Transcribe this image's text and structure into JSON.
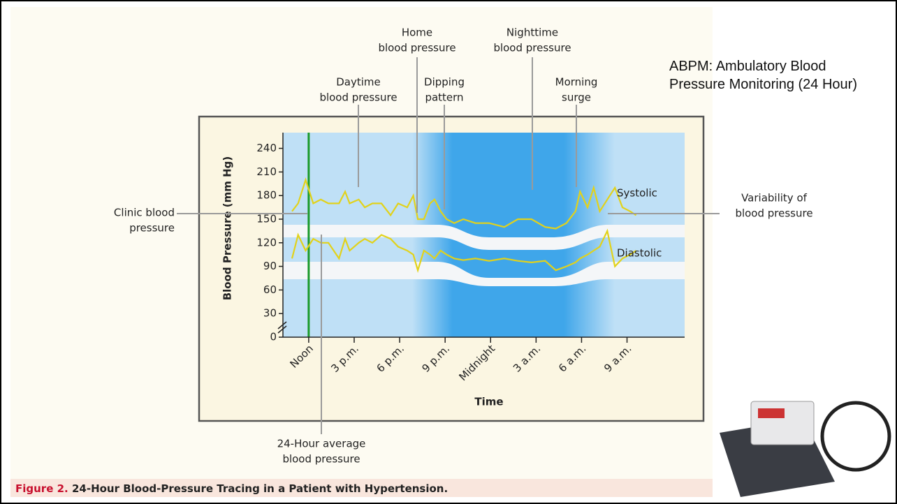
{
  "chart_data": {
    "type": "line",
    "x_label": "Time",
    "y_label": "Blood Pressure (mm Hg)",
    "x": [
      -1.1,
      -0.7,
      -0.2,
      0.3,
      0.8,
      1.3,
      2.0,
      2.4,
      2.7,
      3.3,
      3.7,
      4.2,
      4.8,
      5.4,
      5.9,
      6.5,
      6.9,
      7.2,
      7.6,
      8.0,
      8.3,
      8.7,
      9.1,
      9.6,
      10.2,
      11.0,
      11.9,
      12.9,
      13.8,
      14.7,
      15.6,
      16.3,
      17.0,
      17.6,
      17.9,
      18.4,
      18.8,
      19.2,
      19.7,
      20.2,
      20.7,
      21.2,
      21.6
    ],
    "series": [
      {
        "name": "Systolic",
        "color": "#e2d21a",
        "values": [
          160,
          170,
          200,
          170,
          175,
          170,
          170,
          185,
          170,
          175,
          165,
          170,
          170,
          155,
          170,
          165,
          180,
          150,
          150,
          170,
          175,
          160,
          150,
          145,
          150,
          145,
          145,
          140,
          150,
          150,
          140,
          138,
          145,
          160,
          185,
          165,
          190,
          160,
          175,
          190,
          165,
          160,
          155
        ]
      },
      {
        "name": "Diastolic",
        "color": "#e2d21a",
        "values": [
          100,
          130,
          110,
          125,
          120,
          120,
          100,
          125,
          110,
          120,
          125,
          120,
          130,
          125,
          115,
          110,
          105,
          85,
          110,
          105,
          100,
          110,
          105,
          100,
          98,
          100,
          97,
          100,
          97,
          95,
          97,
          85,
          90,
          95,
          100,
          105,
          110,
          115,
          135,
          90,
          100,
          105,
          110
        ]
      }
    ],
    "xlim": [
      -1.7,
      24.8
    ],
    "ylim": [
      0,
      260
    ],
    "xticks": [
      {
        "value": 0,
        "label": "Noon"
      },
      {
        "value": 3,
        "label": "3 p.m."
      },
      {
        "value": 6,
        "label": "6 p.m."
      },
      {
        "value": 9,
        "label": "9 p.m."
      },
      {
        "value": 12,
        "label": "Midnight"
      },
      {
        "value": 15,
        "label": "3 a.m."
      },
      {
        "value": 18,
        "label": "6 a.m."
      },
      {
        "value": 21,
        "label": "9 a.m."
      }
    ],
    "yticks": [
      0,
      30,
      60,
      90,
      120,
      150,
      180,
      210,
      240
    ],
    "annotations": [
      {
        "lines": [
          "Home",
          "blood pressure"
        ]
      },
      {
        "lines": [
          "Nighttime",
          "blood pressure"
        ]
      },
      {
        "lines": [
          "Daytime",
          "blood pressure"
        ]
      },
      {
        "lines": [
          "Dipping",
          "pattern"
        ]
      },
      {
        "lines": [
          "Morning",
          "surge"
        ]
      },
      {
        "lines": [
          "Clinic blood",
          "pressure"
        ]
      },
      {
        "lines": [
          "Variability of",
          "blood pressure"
        ]
      },
      {
        "lines": [
          "24-Hour average",
          "blood pressure"
        ]
      }
    ],
    "caption_label": "Figure 2.",
    "caption": "24-Hour Blood-Pressure Tracing in a Patient with Hypertension."
  },
  "slide": {
    "note": "ABPM: Ambulatory Blood Pressure Monitoring (24 Hour)"
  }
}
